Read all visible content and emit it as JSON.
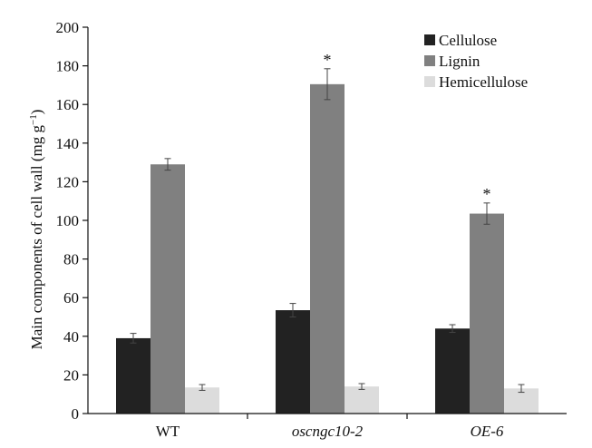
{
  "chart_data": {
    "type": "bar",
    "categories": [
      "WT",
      "oscngc10-2",
      "OE-6"
    ],
    "category_italic": [
      false,
      true,
      true
    ],
    "ylabel_main": "Main components of cell wall (mg g",
    "ylabel_sup": "−1",
    "ylabel_close": ")",
    "ylim": [
      0,
      200
    ],
    "yticks": [
      0,
      20,
      40,
      60,
      80,
      100,
      120,
      140,
      160,
      180,
      200
    ],
    "grid": false,
    "legend_position": "top-right",
    "series": [
      {
        "name": "Cellulose",
        "color": "#222222",
        "values": [
          39,
          53.5,
          44
        ],
        "errors": [
          2.5,
          3.5,
          2
        ]
      },
      {
        "name": "Lignin",
        "color": "#808080",
        "values": [
          129,
          170.5,
          103.5
        ],
        "errors": [
          3,
          8,
          5.5
        ]
      },
      {
        "name": "Hemicellulose",
        "color": "#dcdcdc",
        "values": [
          13.5,
          14,
          13
        ],
        "errors": [
          1.5,
          1.5,
          2
        ]
      }
    ],
    "annotations": [
      {
        "category": "oscngc10-2",
        "series": "Lignin",
        "text": "*"
      },
      {
        "category": "OE-6",
        "series": "Lignin",
        "text": "*"
      }
    ]
  }
}
